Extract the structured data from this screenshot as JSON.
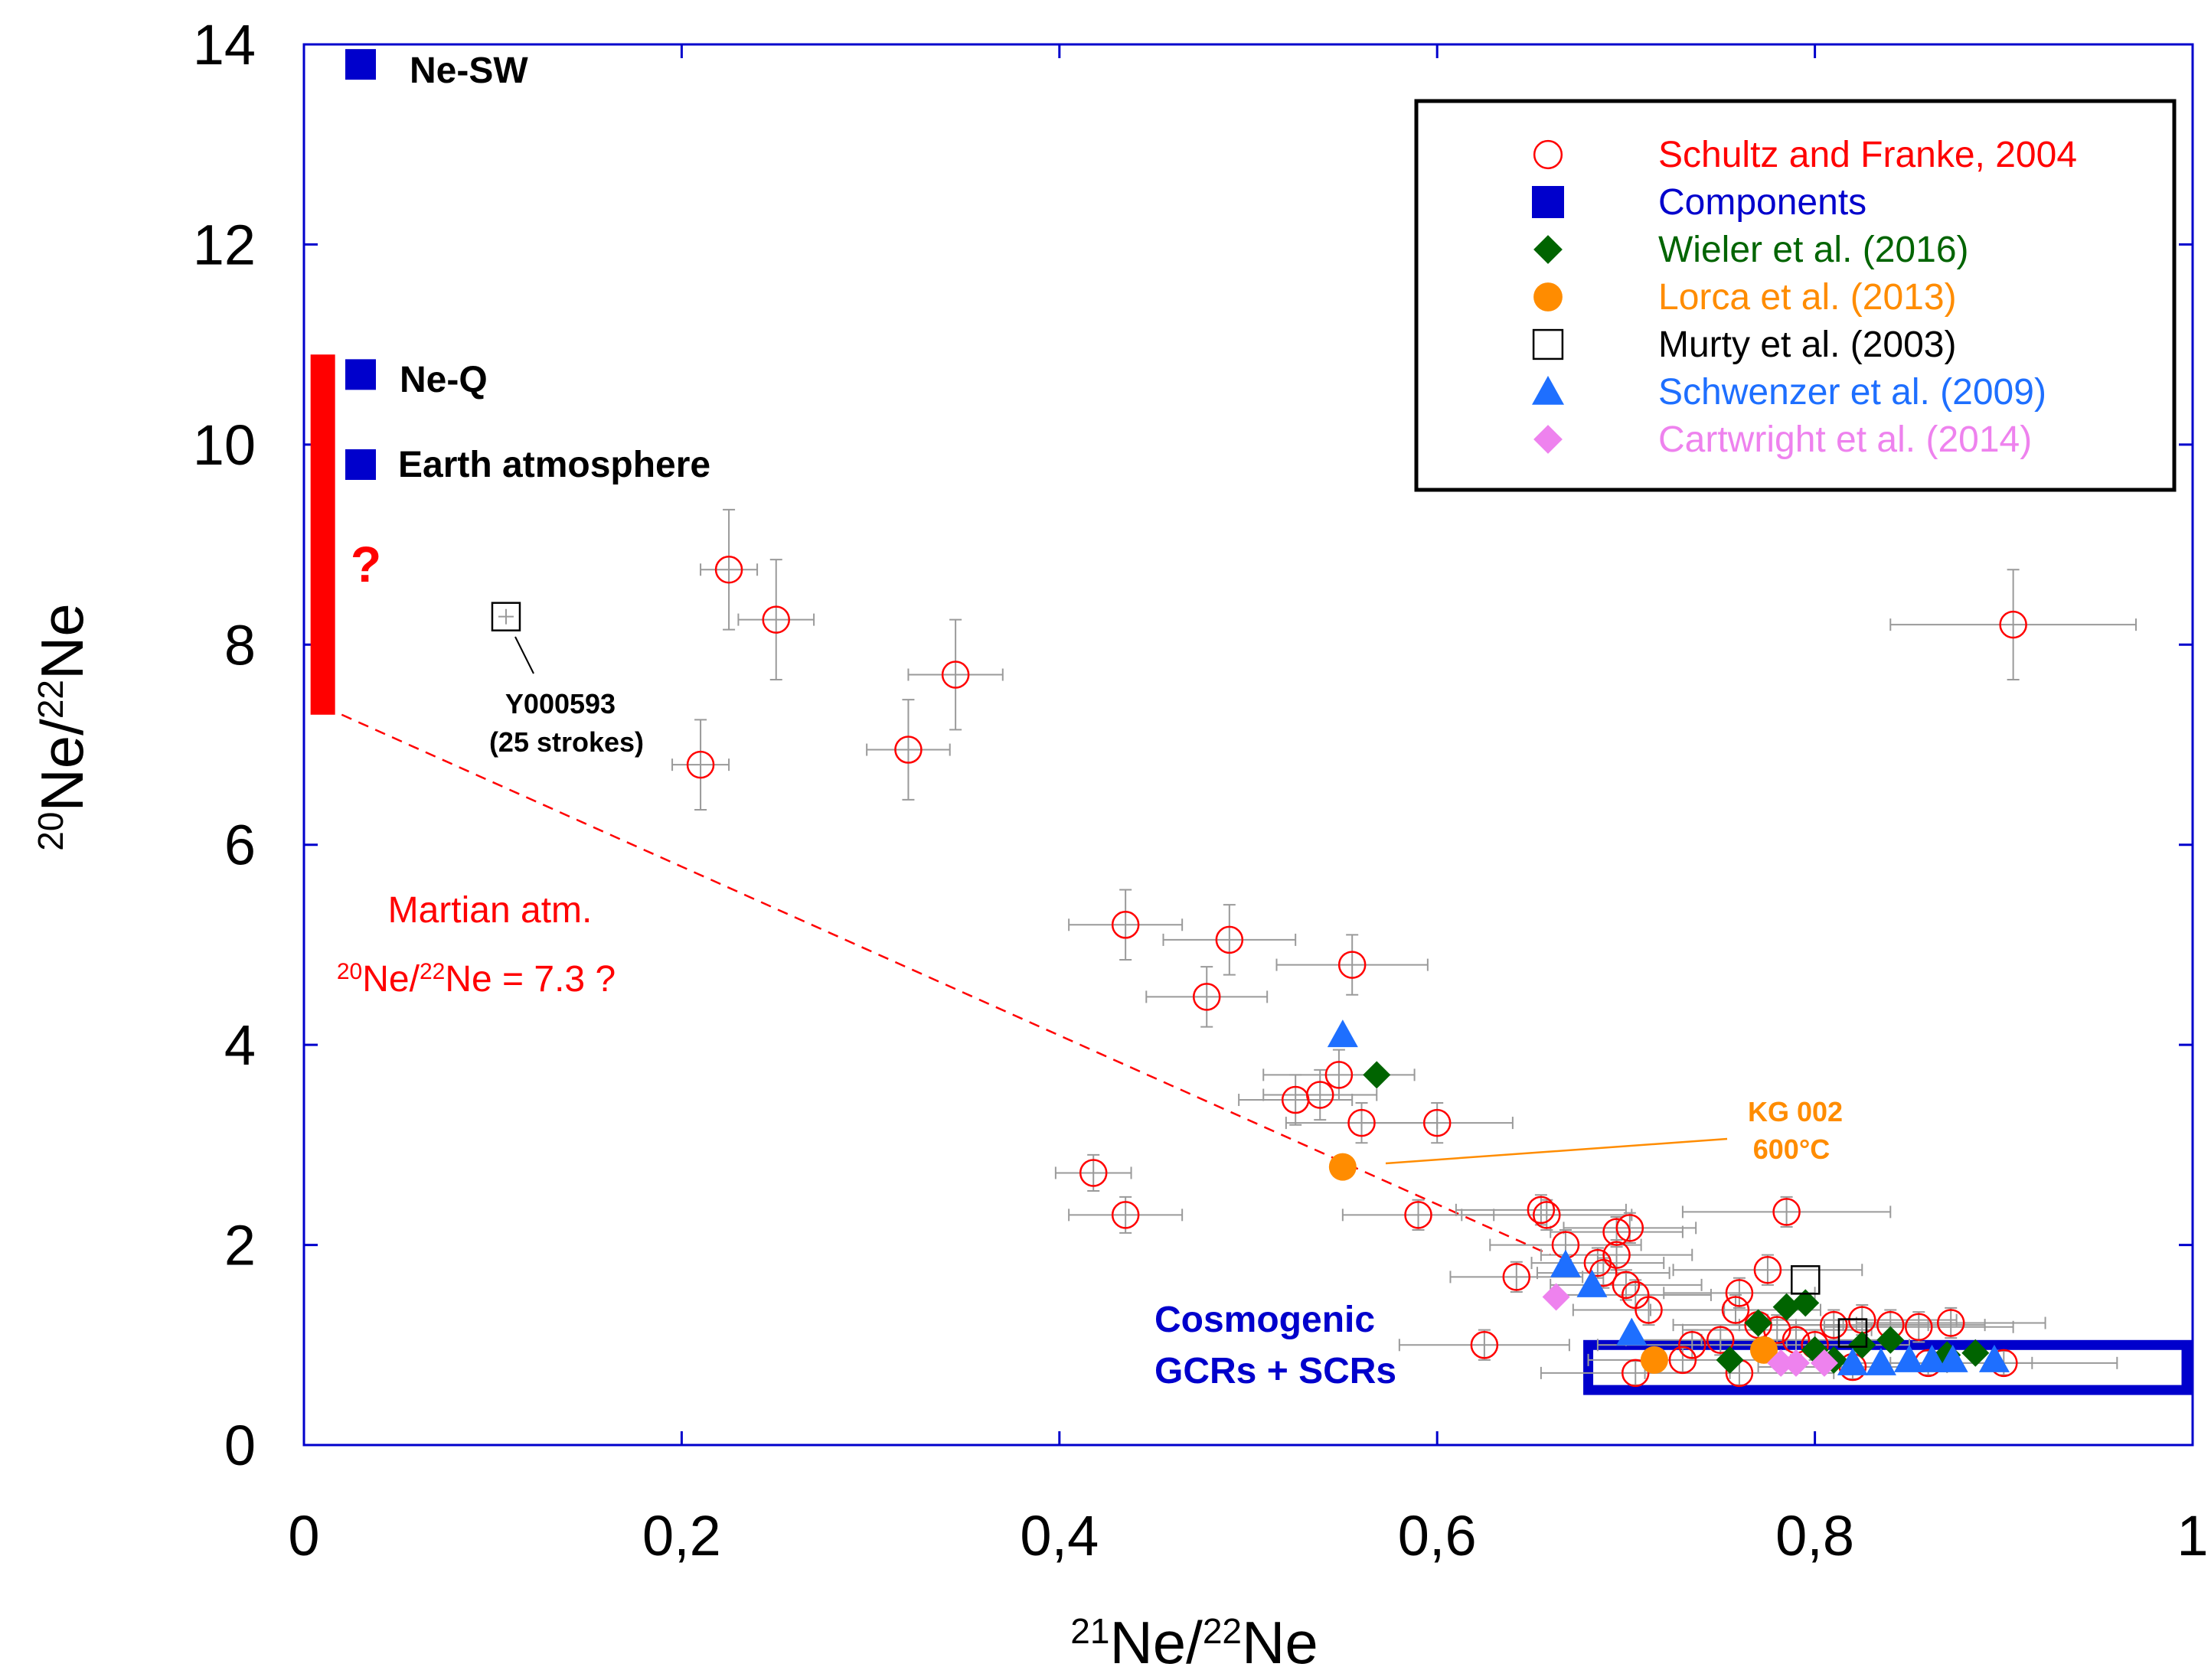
{
  "chart_data": {
    "type": "scatter",
    "xlabel": {
      "sup1": "21",
      "base1": "Ne/",
      "sup2": "22",
      "base2": "Ne"
    },
    "ylabel": {
      "sup1": "20",
      "base1": "Ne/",
      "sup2": "22",
      "base2": "Ne"
    },
    "xlim": [
      0,
      1
    ],
    "ylim": [
      0,
      14
    ],
    "x_ticks": [
      {
        "value": 0,
        "label": "0"
      },
      {
        "value": 0.2,
        "label": "0,2"
      },
      {
        "value": 0.4,
        "label": "0,4"
      },
      {
        "value": 0.6,
        "label": "0,6"
      },
      {
        "value": 0.8,
        "label": "0,8"
      },
      {
        "value": 1,
        "label": "1"
      }
    ],
    "y_ticks": [
      {
        "value": 0,
        "label": "0"
      },
      {
        "value": 2,
        "label": "2"
      },
      {
        "value": 4,
        "label": "4"
      },
      {
        "value": 6,
        "label": "6"
      },
      {
        "value": 8,
        "label": "8"
      },
      {
        "value": 10,
        "label": "10"
      },
      {
        "value": 12,
        "label": "12"
      },
      {
        "value": 14,
        "label": "14"
      }
    ],
    "legend": {
      "position": "top-right",
      "entries": [
        {
          "label": "Schultz and Franke, 2004",
          "marker": "open-circle",
          "color": "#ff0000"
        },
        {
          "label": "Components",
          "marker": "filled-square",
          "color": "#0000cc"
        },
        {
          "label": "Wieler et al. (2016)",
          "marker": "filled-diamond",
          "color": "#006400"
        },
        {
          "label": "Lorca et al. (2013)",
          "marker": "filled-circle",
          "color": "#ff8c00"
        },
        {
          "label": "Murty et al. (2003)",
          "marker": "open-square",
          "color": "#000000"
        },
        {
          "label": "Schwenzer et al. (2009)",
          "marker": "filled-triangle",
          "color": "#1e6fff"
        },
        {
          "label": "Cartwright et al. (2014)",
          "marker": "filled-diamond",
          "color": "#ee82ee"
        }
      ]
    },
    "series": [
      {
        "name": "Schultz and Franke, 2004",
        "color": "#ff0000",
        "points": [
          {
            "x": 0.225,
            "y": 8.75,
            "ex": 0.015,
            "ey": 0.6
          },
          {
            "x": 0.25,
            "y": 8.25,
            "ex": 0.02,
            "ey": 0.6
          },
          {
            "x": 0.21,
            "y": 6.8,
            "ex": 0.015,
            "ey": 0.45
          },
          {
            "x": 0.32,
            "y": 6.95,
            "ex": 0.022,
            "ey": 0.5
          },
          {
            "x": 0.345,
            "y": 7.7,
            "ex": 0.025,
            "ey": 0.55
          },
          {
            "x": 0.905,
            "y": 8.2,
            "ex": 0.065,
            "ey": 0.55
          },
          {
            "x": 0.435,
            "y": 5.2,
            "ex": 0.03,
            "ey": 0.35
          },
          {
            "x": 0.49,
            "y": 5.05,
            "ex": 0.035,
            "ey": 0.35
          },
          {
            "x": 0.555,
            "y": 4.8,
            "ex": 0.04,
            "ey": 0.3
          },
          {
            "x": 0.478,
            "y": 4.48,
            "ex": 0.032,
            "ey": 0.3
          },
          {
            "x": 0.548,
            "y": 3.7,
            "ex": 0.04,
            "ey": 0.25
          },
          {
            "x": 0.525,
            "y": 3.45,
            "ex": 0.03,
            "ey": 0.25
          },
          {
            "x": 0.538,
            "y": 3.5,
            "ex": 0.03,
            "ey": 0.25
          },
          {
            "x": 0.56,
            "y": 3.22,
            "ex": 0.04,
            "ey": 0.2
          },
          {
            "x": 0.6,
            "y": 3.22,
            "ex": 0.04,
            "ey": 0.2
          },
          {
            "x": 0.418,
            "y": 2.72,
            "ex": 0.02,
            "ey": 0.18
          },
          {
            "x": 0.435,
            "y": 2.3,
            "ex": 0.03,
            "ey": 0.18
          },
          {
            "x": 0.59,
            "y": 2.3,
            "ex": 0.04,
            "ey": 0.15
          },
          {
            "x": 0.655,
            "y": 2.35,
            "ex": 0.045,
            "ey": 0.15
          },
          {
            "x": 0.658,
            "y": 2.3,
            "ex": 0.045,
            "ey": 0.15
          },
          {
            "x": 0.785,
            "y": 2.33,
            "ex": 0.055,
            "ey": 0.15
          },
          {
            "x": 0.668,
            "y": 2.0,
            "ex": 0.04,
            "ey": 0.15
          },
          {
            "x": 0.695,
            "y": 2.13,
            "ex": 0.035,
            "ey": 0.15
          },
          {
            "x": 0.702,
            "y": 2.17,
            "ex": 0.035,
            "ey": 0.15
          },
          {
            "x": 0.695,
            "y": 1.9,
            "ex": 0.04,
            "ey": 0.15
          },
          {
            "x": 0.685,
            "y": 1.82,
            "ex": 0.035,
            "ey": 0.15
          },
          {
            "x": 0.688,
            "y": 1.72,
            "ex": 0.035,
            "ey": 0.15
          },
          {
            "x": 0.775,
            "y": 1.75,
            "ex": 0.05,
            "ey": 0.15
          },
          {
            "x": 0.642,
            "y": 1.68,
            "ex": 0.035,
            "ey": 0.15
          },
          {
            "x": 0.7,
            "y": 1.6,
            "ex": 0.04,
            "ey": 0.15
          },
          {
            "x": 0.705,
            "y": 1.5,
            "ex": 0.04,
            "ey": 0.15
          },
          {
            "x": 0.76,
            "y": 1.52,
            "ex": 0.04,
            "ey": 0.15
          },
          {
            "x": 0.712,
            "y": 1.35,
            "ex": 0.04,
            "ey": 0.15
          },
          {
            "x": 0.758,
            "y": 1.35,
            "ex": 0.045,
            "ey": 0.15
          },
          {
            "x": 0.77,
            "y": 1.2,
            "ex": 0.045,
            "ey": 0.15
          },
          {
            "x": 0.78,
            "y": 1.15,
            "ex": 0.05,
            "ey": 0.15
          },
          {
            "x": 0.81,
            "y": 1.2,
            "ex": 0.05,
            "ey": 0.15
          },
          {
            "x": 0.825,
            "y": 1.25,
            "ex": 0.05,
            "ey": 0.15
          },
          {
            "x": 0.84,
            "y": 1.2,
            "ex": 0.05,
            "ey": 0.15
          },
          {
            "x": 0.855,
            "y": 1.18,
            "ex": 0.05,
            "ey": 0.15
          },
          {
            "x": 0.872,
            "y": 1.22,
            "ex": 0.05,
            "ey": 0.15
          },
          {
            "x": 0.735,
            "y": 1.0,
            "ex": 0.05,
            "ey": 0.15
          },
          {
            "x": 0.75,
            "y": 1.05,
            "ex": 0.05,
            "ey": 0.15
          },
          {
            "x": 0.79,
            "y": 1.05,
            "ex": 0.05,
            "ey": 0.15
          },
          {
            "x": 0.8,
            "y": 1.0,
            "ex": 0.05,
            "ey": 0.15
          },
          {
            "x": 0.625,
            "y": 1.0,
            "ex": 0.045,
            "ey": 0.15
          },
          {
            "x": 0.73,
            "y": 0.85,
            "ex": 0.05,
            "ey": 0.12
          },
          {
            "x": 0.705,
            "y": 0.72,
            "ex": 0.05,
            "ey": 0.12
          },
          {
            "x": 0.76,
            "y": 0.72,
            "ex": 0.05,
            "ey": 0.12
          },
          {
            "x": 0.82,
            "y": 0.78,
            "ex": 0.05,
            "ey": 0.12
          },
          {
            "x": 0.86,
            "y": 0.82,
            "ex": 0.055,
            "ey": 0.12
          },
          {
            "x": 0.9,
            "y": 0.82,
            "ex": 0.06,
            "ey": 0.12
          }
        ]
      },
      {
        "name": "Components",
        "color": "#0000cc",
        "points": [
          {
            "x": 0.03,
            "y": 13.8,
            "label": "Ne-SW"
          },
          {
            "x": 0.03,
            "y": 10.7,
            "label": "Ne-Q"
          },
          {
            "x": 0.03,
            "y": 9.8,
            "label": "Earth atmosphere"
          }
        ]
      },
      {
        "name": "Wieler et al. (2016)",
        "color": "#006400",
        "points": [
          {
            "x": 0.568,
            "y": 3.7
          },
          {
            "x": 0.785,
            "y": 1.38
          },
          {
            "x": 0.795,
            "y": 1.42
          },
          {
            "x": 0.77,
            "y": 1.22
          },
          {
            "x": 0.755,
            "y": 0.85
          },
          {
            "x": 0.8,
            "y": 0.95
          },
          {
            "x": 0.81,
            "y": 0.85
          },
          {
            "x": 0.825,
            "y": 1.0
          },
          {
            "x": 0.84,
            "y": 1.05
          },
          {
            "x": 0.87,
            "y": 0.9
          },
          {
            "x": 0.885,
            "y": 0.92
          }
        ]
      },
      {
        "name": "Lorca et al. (2013)",
        "color": "#ff8c00",
        "points": [
          {
            "x": 0.55,
            "y": 2.78
          },
          {
            "x": 0.715,
            "y": 0.85
          },
          {
            "x": 0.773,
            "y": 0.95
          }
        ]
      },
      {
        "name": "Murty et al. (2003)",
        "color": "#000000",
        "points": [
          {
            "x": 0.107,
            "y": 8.28
          },
          {
            "x": 0.795,
            "y": 1.65
          },
          {
            "x": 0.82,
            "y": 1.12
          }
        ]
      },
      {
        "name": "Schwenzer et al. (2009)",
        "color": "#1e6fff",
        "points": [
          {
            "x": 0.55,
            "y": 4.1
          },
          {
            "x": 0.668,
            "y": 1.8
          },
          {
            "x": 0.682,
            "y": 1.6
          },
          {
            "x": 0.703,
            "y": 1.12
          },
          {
            "x": 0.82,
            "y": 0.82
          },
          {
            "x": 0.835,
            "y": 0.82
          },
          {
            "x": 0.85,
            "y": 0.85
          },
          {
            "x": 0.862,
            "y": 0.85
          },
          {
            "x": 0.873,
            "y": 0.85
          },
          {
            "x": 0.895,
            "y": 0.85
          }
        ]
      },
      {
        "name": "Cartwright et al. (2014)",
        "color": "#ee82ee",
        "points": [
          {
            "x": 0.663,
            "y": 1.48
          },
          {
            "x": 0.782,
            "y": 0.82
          },
          {
            "x": 0.79,
            "y": 0.82
          },
          {
            "x": 0.805,
            "y": 0.82
          }
        ]
      }
    ],
    "annotations": {
      "martian_range": {
        "x": 0.01,
        "y_low": 7.3,
        "y_high": 10.9,
        "color": "#ff0000",
        "question": "?"
      },
      "martian_line": {
        "x1": 0.02,
        "y1": 7.3,
        "x2": 0.66,
        "y2": 1.9,
        "color": "#ff0000"
      },
      "martian_text": {
        "line1": "Martian atm.",
        "sup1": "20",
        "base1": "Ne/",
        "sup2": "22",
        "base2": "Ne = 7.3 ?",
        "color": "#ff0000"
      },
      "y000593": {
        "line1": "Y000593",
        "line2": "(25 strokes)",
        "color": "#000000"
      },
      "kg002": {
        "line1": "KG 002",
        "line2": "600°C",
        "color": "#ff8c00"
      },
      "cosmogenic": {
        "line1": "Cosmogenic",
        "line2": "GCRs + SCRs",
        "color": "#0000cc",
        "box": {
          "x_min": 0.68,
          "x_max": 1.0,
          "y_min": 0.55,
          "y_max": 1.0
        }
      }
    }
  }
}
